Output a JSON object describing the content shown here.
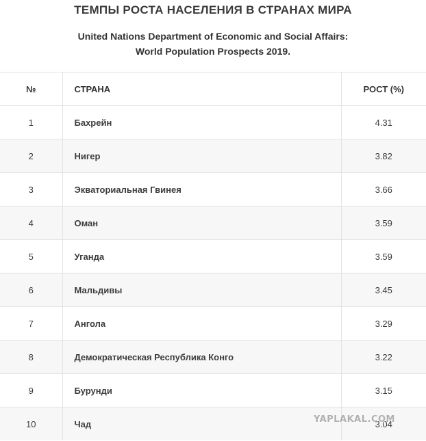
{
  "title": "ТЕМПЫ РОСТА НАСЕЛЕНИЯ В СТРАНАХ МИРА",
  "subtitle_line1": "United Nations Department of Economic and Social Affairs:",
  "subtitle_line2": "World Population Prospects 2019.",
  "table": {
    "headers": {
      "num": "№",
      "country": "СТРАНА",
      "growth": "РОСТ (%)"
    },
    "rows": [
      {
        "num": "1",
        "country": "Бахрейн",
        "growth": "4.31"
      },
      {
        "num": "2",
        "country": "Нигер",
        "growth": "3.82"
      },
      {
        "num": "3",
        "country": "Экваториальная Гвинея",
        "growth": "3.66"
      },
      {
        "num": "4",
        "country": "Оман",
        "growth": "3.59"
      },
      {
        "num": "5",
        "country": "Уганда",
        "growth": "3.59"
      },
      {
        "num": "6",
        "country": "Мальдивы",
        "growth": "3.45"
      },
      {
        "num": "7",
        "country": "Ангола",
        "growth": "3.29"
      },
      {
        "num": "8",
        "country": "Демократическая Республика Конго",
        "growth": "3.22"
      },
      {
        "num": "9",
        "country": "Бурунди",
        "growth": "3.15"
      },
      {
        "num": "10",
        "country": "Чад",
        "growth": "3.04"
      }
    ]
  },
  "watermark": "YAPLAKAL.COM"
}
